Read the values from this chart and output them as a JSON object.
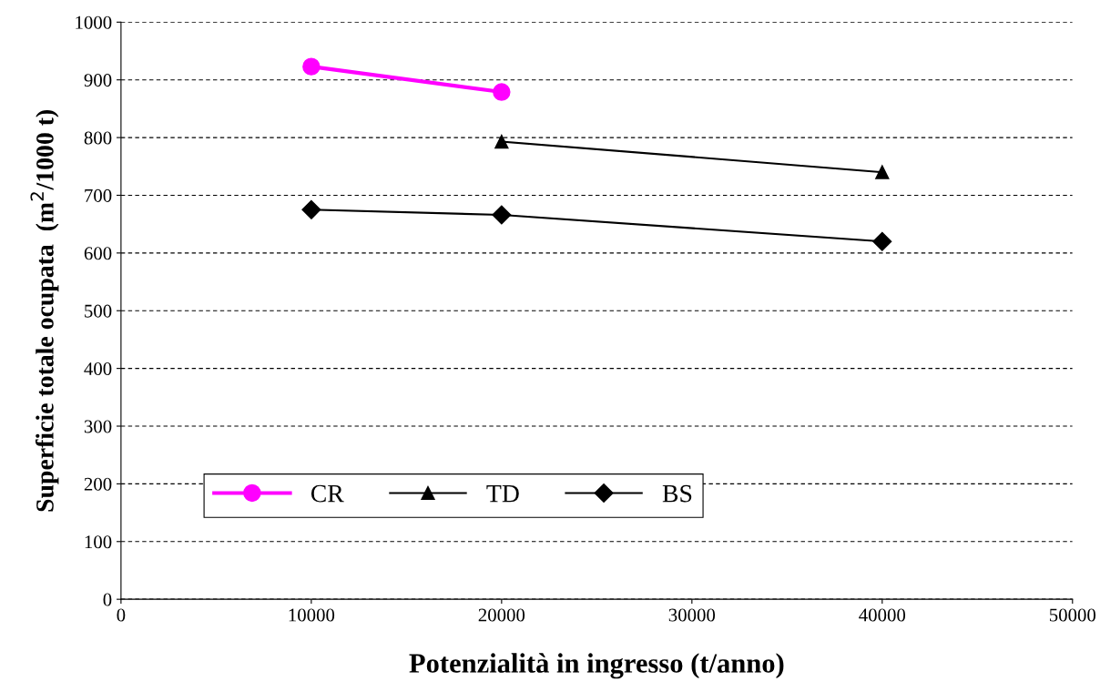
{
  "chart_data": {
    "type": "line",
    "xlabel": "Potenzialità in ingresso (t/anno)",
    "ylabel": "Superficie totale ocupata  (m$^{2}$/1000 t)",
    "xlim": [
      0,
      50000
    ],
    "xticks": [
      0,
      10000,
      20000,
      30000,
      40000,
      50000
    ],
    "ylim": [
      0,
      1000
    ],
    "yticks": [
      0,
      100,
      200,
      300,
      400,
      500,
      600,
      700,
      800,
      900,
      1000
    ],
    "grid": "y",
    "legend": "bottom left",
    "series": [
      {
        "name": "CR",
        "color": "#ff00ff",
        "marker": "circle",
        "x": [
          10000,
          20000
        ],
        "values": [
          923,
          879
        ]
      },
      {
        "name": "TD",
        "color": "#000000",
        "marker": "triangle",
        "x": [
          20000,
          40000
        ],
        "values": [
          793,
          740
        ]
      },
      {
        "name": "BS",
        "color": "#000000",
        "marker": "diamond",
        "x": [
          10000,
          20000,
          40000
        ],
        "values": [
          675,
          666,
          620
        ]
      }
    ]
  }
}
